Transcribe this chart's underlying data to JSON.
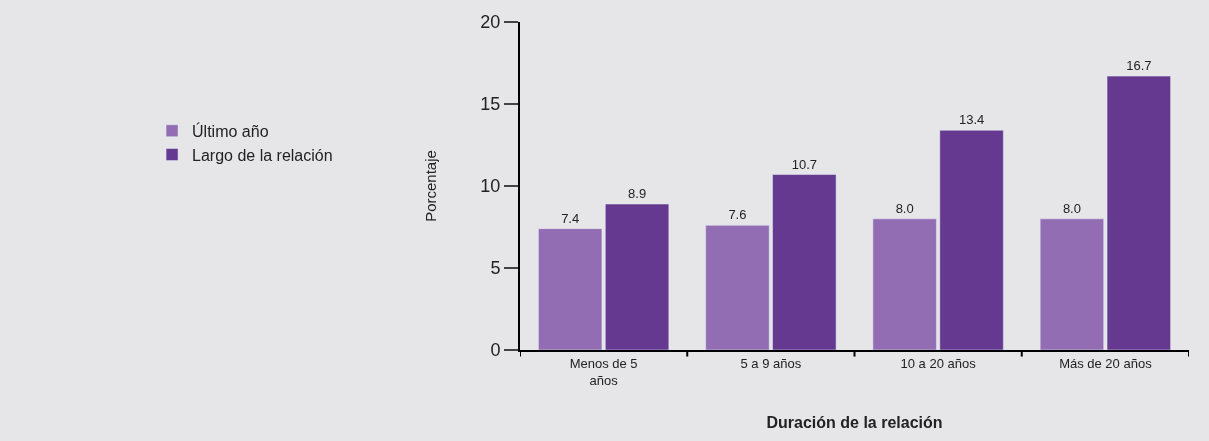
{
  "chart_data": {
    "type": "bar",
    "xlabel": "Duración de la relación",
    "ylabel": "Porcentaje",
    "categories": [
      "Menos de 5 años",
      "5 a 9 años",
      "10 a 20 años",
      "Más de 20 años"
    ],
    "series": [
      {
        "name": "Último año",
        "color": "#936db4",
        "values": [
          7.4,
          7.6,
          8.0,
          8.0
        ],
        "value_labels": [
          "7.4",
          "7.6",
          "8.0",
          "8.0"
        ]
      },
      {
        "name": "Largo de la relación",
        "color": "#65398f",
        "values": [
          8.9,
          10.7,
          13.4,
          16.7
        ],
        "value_labels": [
          "8.9",
          "10.7",
          "13.4",
          "16.7"
        ]
      }
    ],
    "ylim": [
      0,
      20
    ],
    "yticks": [
      0,
      5,
      10,
      15,
      20
    ],
    "grid": false,
    "legend": "left"
  }
}
